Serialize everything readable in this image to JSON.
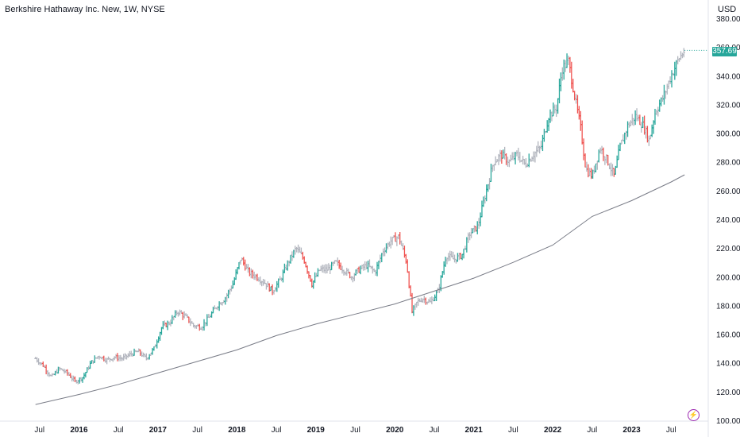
{
  "header": {
    "title": "Berkshire Hathaway Inc. New, 1W, NYSE",
    "currency": "USD",
    "last_price": "357.69",
    "last_price_color": "#26a69a"
  },
  "icons": {
    "bolt": "lightning-bolt-icon"
  },
  "colors": {
    "up": "#26a69a",
    "down": "#ef5350",
    "up_light": "#9fd5cf",
    "down_light": "#f3a9a8",
    "neutral": "#b2b5be",
    "moving_average": "#787b86"
  },
  "chart_data": {
    "type": "ohlc-bars-with-moving-average",
    "ylim": [
      100,
      380
    ],
    "y_ticks": [
      "100.00",
      "120.00",
      "140.00",
      "160.00",
      "180.00",
      "200.00",
      "220.00",
      "240.00",
      "260.00",
      "280.00",
      "300.00",
      "320.00",
      "340.00",
      "360.00",
      "380.00"
    ],
    "x_ticks": [
      {
        "label": "Jul",
        "t": 2015.5
      },
      {
        "label": "2016",
        "t": 2016.0
      },
      {
        "label": "Jul",
        "t": 2016.5
      },
      {
        "label": "2017",
        "t": 2017.0
      },
      {
        "label": "Jul",
        "t": 2017.5
      },
      {
        "label": "2018",
        "t": 2018.0
      },
      {
        "label": "Jul",
        "t": 2018.5
      },
      {
        "label": "2019",
        "t": 2019.0
      },
      {
        "label": "Jul",
        "t": 2019.5
      },
      {
        "label": "2020",
        "t": 2020.0
      },
      {
        "label": "Jul",
        "t": 2020.5
      },
      {
        "label": "2021",
        "t": 2021.0
      },
      {
        "label": "Jul",
        "t": 2021.5
      },
      {
        "label": "2022",
        "t": 2022.0
      },
      {
        "label": "Jul",
        "t": 2022.5
      },
      {
        "label": "2023",
        "t": 2023.0
      },
      {
        "label": "Jul",
        "t": 2023.5
      }
    ],
    "price_path": [
      [
        2015.45,
        143
      ],
      [
        2015.55,
        138
      ],
      [
        2015.65,
        130
      ],
      [
        2015.75,
        136
      ],
      [
        2015.85,
        133
      ],
      [
        2015.95,
        127
      ],
      [
        2016.05,
        130
      ],
      [
        2016.15,
        140
      ],
      [
        2016.25,
        145
      ],
      [
        2016.35,
        142
      ],
      [
        2016.45,
        144
      ],
      [
        2016.55,
        143
      ],
      [
        2016.65,
        146
      ],
      [
        2016.75,
        148
      ],
      [
        2016.85,
        143
      ],
      [
        2016.95,
        150
      ],
      [
        2017.05,
        165
      ],
      [
        2017.15,
        168
      ],
      [
        2017.25,
        176
      ],
      [
        2017.35,
        172
      ],
      [
        2017.45,
        166
      ],
      [
        2017.55,
        165
      ],
      [
        2017.65,
        172
      ],
      [
        2017.75,
        180
      ],
      [
        2017.85,
        185
      ],
      [
        2017.95,
        195
      ],
      [
        2018.05,
        213
      ],
      [
        2018.15,
        203
      ],
      [
        2018.25,
        200
      ],
      [
        2018.35,
        196
      ],
      [
        2018.45,
        190
      ],
      [
        2018.55,
        198
      ],
      [
        2018.65,
        210
      ],
      [
        2018.75,
        220
      ],
      [
        2018.85,
        212
      ],
      [
        2018.95,
        195
      ],
      [
        2019.05,
        205
      ],
      [
        2019.15,
        205
      ],
      [
        2019.25,
        210
      ],
      [
        2019.35,
        205
      ],
      [
        2019.45,
        200
      ],
      [
        2019.55,
        205
      ],
      [
        2019.65,
        208
      ],
      [
        2019.75,
        203
      ],
      [
        2019.85,
        218
      ],
      [
        2019.95,
        225
      ],
      [
        2020.05,
        228
      ],
      [
        2020.15,
        210
      ],
      [
        2020.22,
        175
      ],
      [
        2020.28,
        182
      ],
      [
        2020.35,
        185
      ],
      [
        2020.45,
        182
      ],
      [
        2020.55,
        190
      ],
      [
        2020.65,
        215
      ],
      [
        2020.75,
        212
      ],
      [
        2020.85,
        215
      ],
      [
        2020.95,
        230
      ],
      [
        2021.05,
        235
      ],
      [
        2021.15,
        258
      ],
      [
        2021.25,
        280
      ],
      [
        2021.35,
        285
      ],
      [
        2021.45,
        280
      ],
      [
        2021.55,
        285
      ],
      [
        2021.65,
        278
      ],
      [
        2021.75,
        285
      ],
      [
        2021.85,
        290
      ],
      [
        2021.95,
        312
      ],
      [
        2022.05,
        318
      ],
      [
        2022.12,
        345
      ],
      [
        2022.2,
        350
      ],
      [
        2022.28,
        325
      ],
      [
        2022.35,
        305
      ],
      [
        2022.42,
        275
      ],
      [
        2022.5,
        270
      ],
      [
        2022.6,
        290
      ],
      [
        2022.7,
        280
      ],
      [
        2022.78,
        270
      ],
      [
        2022.85,
        290
      ],
      [
        2022.95,
        305
      ],
      [
        2023.05,
        312
      ],
      [
        2023.15,
        305
      ],
      [
        2023.22,
        295
      ],
      [
        2023.3,
        315
      ],
      [
        2023.4,
        325
      ],
      [
        2023.5,
        340
      ],
      [
        2023.6,
        352
      ],
      [
        2023.67,
        357.69
      ]
    ],
    "moving_average": [
      [
        2015.45,
        111
      ],
      [
        2016.0,
        118
      ],
      [
        2016.5,
        125
      ],
      [
        2017.0,
        133
      ],
      [
        2017.5,
        141
      ],
      [
        2018.0,
        149
      ],
      [
        2018.5,
        159
      ],
      [
        2019.0,
        167
      ],
      [
        2019.5,
        174
      ],
      [
        2020.0,
        181
      ],
      [
        2020.5,
        190
      ],
      [
        2021.0,
        199
      ],
      [
        2021.5,
        210
      ],
      [
        2022.0,
        222
      ],
      [
        2022.5,
        242
      ],
      [
        2023.0,
        253
      ],
      [
        2023.5,
        266
      ],
      [
        2023.67,
        271
      ]
    ],
    "up_bars": [
      [
        2023.67,
        357.69
      ]
    ]
  }
}
